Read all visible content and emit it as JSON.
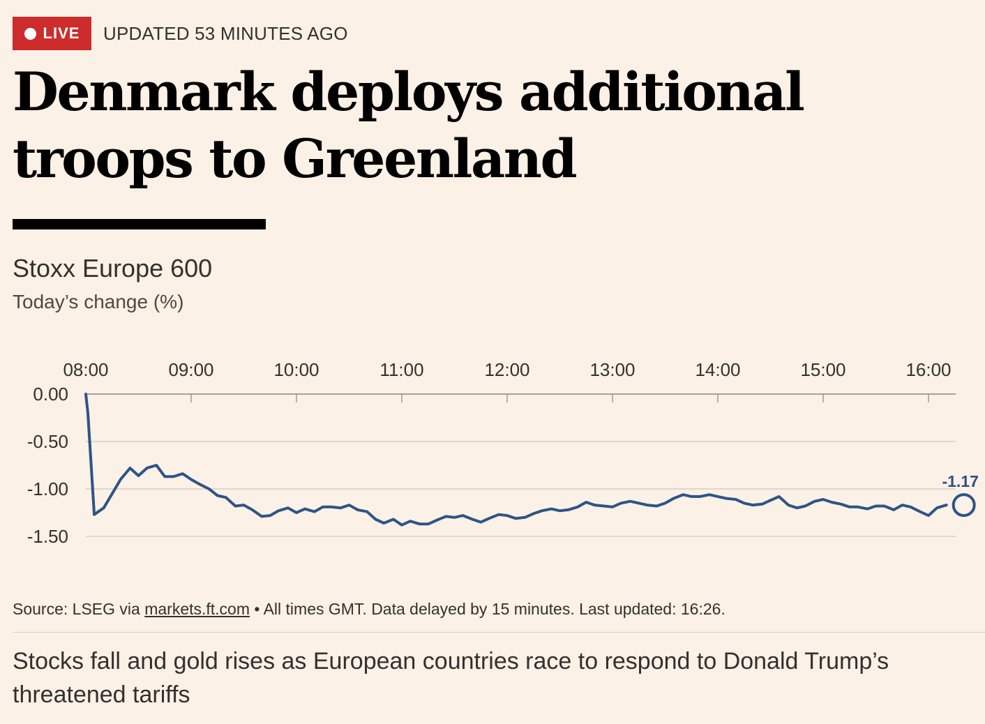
{
  "header": {
    "live_label": "LIVE",
    "updated_text": "UPDATED 53 MINUTES AGO",
    "live_color": "#cc2c2c"
  },
  "headline": "Denmark deploys additional troops to Greenland",
  "chart_data": {
    "type": "line",
    "title": "Stoxx Europe 600",
    "subtitle": "Today’s change (%)",
    "xlabel": "",
    "ylabel": "Today’s change (%)",
    "x_ticks": [
      "08:00",
      "09:00",
      "10:00",
      "11:00",
      "12:00",
      "13:00",
      "14:00",
      "15:00",
      "16:00"
    ],
    "y_ticks": [
      "0.00",
      "-0.50",
      "-1.00",
      "-1.50"
    ],
    "y_tick_values": [
      0,
      -0.5,
      -1.0,
      -1.5
    ],
    "ylim": [
      -1.5,
      0
    ],
    "xlim_hours": [
      8.0,
      16.33
    ],
    "last_value_label": "-1.17",
    "line_color": "#2e5487",
    "series": [
      {
        "name": "Stoxx Europe 600",
        "x": [
          8.0,
          8.02,
          8.08,
          8.17,
          8.25,
          8.33,
          8.42,
          8.5,
          8.58,
          8.67,
          8.75,
          8.83,
          8.92,
          9.0,
          9.08,
          9.17,
          9.25,
          9.33,
          9.42,
          9.5,
          9.58,
          9.67,
          9.75,
          9.83,
          9.92,
          10.0,
          10.08,
          10.17,
          10.25,
          10.33,
          10.42,
          10.5,
          10.58,
          10.67,
          10.75,
          10.83,
          10.92,
          11.0,
          11.08,
          11.17,
          11.25,
          11.33,
          11.42,
          11.5,
          11.58,
          11.67,
          11.75,
          11.83,
          11.92,
          12.0,
          12.08,
          12.17,
          12.25,
          12.33,
          12.42,
          12.5,
          12.58,
          12.67,
          12.75,
          12.83,
          12.92,
          13.0,
          13.08,
          13.17,
          13.25,
          13.33,
          13.42,
          13.5,
          13.58,
          13.67,
          13.75,
          13.83,
          13.92,
          14.0,
          14.08,
          14.17,
          14.25,
          14.33,
          14.42,
          14.5,
          14.58,
          14.67,
          14.75,
          14.83,
          14.92,
          15.0,
          15.08,
          15.17,
          15.25,
          15.33,
          15.42,
          15.5,
          15.58,
          15.67,
          15.75,
          15.83,
          15.92,
          16.0,
          16.08,
          16.17
        ],
        "values": [
          0.0,
          -0.2,
          -1.27,
          -1.2,
          -1.05,
          -0.9,
          -0.78,
          -0.86,
          -0.78,
          -0.75,
          -0.87,
          -0.87,
          -0.84,
          -0.9,
          -0.95,
          -1.0,
          -1.07,
          -1.09,
          -1.18,
          -1.17,
          -1.22,
          -1.29,
          -1.28,
          -1.23,
          -1.2,
          -1.25,
          -1.21,
          -1.24,
          -1.19,
          -1.19,
          -1.2,
          -1.17,
          -1.22,
          -1.24,
          -1.32,
          -1.36,
          -1.32,
          -1.38,
          -1.34,
          -1.37,
          -1.37,
          -1.33,
          -1.29,
          -1.3,
          -1.28,
          -1.32,
          -1.35,
          -1.31,
          -1.27,
          -1.28,
          -1.31,
          -1.3,
          -1.26,
          -1.23,
          -1.21,
          -1.23,
          -1.22,
          -1.19,
          -1.14,
          -1.17,
          -1.18,
          -1.19,
          -1.15,
          -1.13,
          -1.15,
          -1.17,
          -1.18,
          -1.15,
          -1.1,
          -1.06,
          -1.08,
          -1.08,
          -1.06,
          -1.08,
          -1.1,
          -1.11,
          -1.15,
          -1.17,
          -1.16,
          -1.12,
          -1.08,
          -1.17,
          -1.2,
          -1.18,
          -1.13,
          -1.11,
          -1.14,
          -1.16,
          -1.19,
          -1.19,
          -1.21,
          -1.18,
          -1.18,
          -1.22,
          -1.17,
          -1.19,
          -1.24,
          -1.28,
          -1.2,
          -1.17
        ]
      }
    ],
    "last_point": {
      "x": 16.17,
      "value": -1.17
    },
    "grid": true
  },
  "source": {
    "prefix": "Source: LSEG via",
    "link_text": "markets.ft.com",
    "suffix": "• All times GMT. Data delayed by 15 minutes. Last updated: 16:26."
  },
  "standfirst": "Stocks fall and gold rises as European countries race to respond to Donald Trump’s threatened tariffs"
}
